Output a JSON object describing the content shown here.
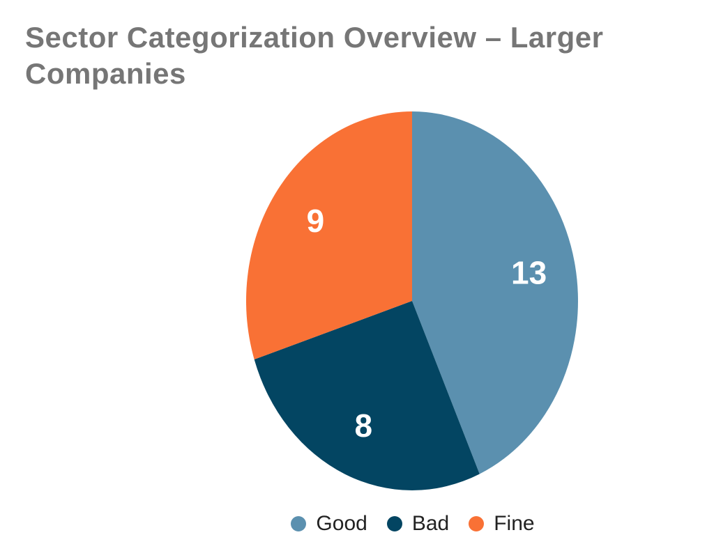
{
  "chart_data": {
    "type": "pie",
    "title": "Sector Categorization Overview – Larger Companies",
    "categories": [
      "Good",
      "Bad",
      "Fine"
    ],
    "values": [
      13,
      8,
      9
    ],
    "colors": [
      "#5b90af",
      "#034562",
      "#f97135"
    ],
    "data_labels": [
      "13",
      "8",
      "9"
    ],
    "legend_placement": "bottom"
  }
}
